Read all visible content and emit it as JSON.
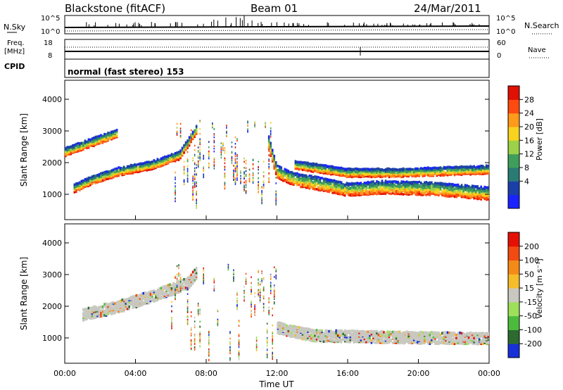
{
  "header": {
    "station": "Blackstone (fitACF)",
    "beam": "Beam 01",
    "date": "24/Mar/2011"
  },
  "noise_panel": {
    "left_label": "N.Sky",
    "right_label": "N.Search",
    "left_ticks": [
      "10^5",
      "10^0"
    ],
    "right_ticks": [
      "10^5",
      "10^0"
    ]
  },
  "freq_panel": {
    "left_label_line1": "Freq.",
    "left_label_line2": "[MHz]",
    "left_ticks": [
      "18",
      "8"
    ],
    "right_label": "Nave",
    "right_ticks": [
      "60",
      "0"
    ]
  },
  "cpid_panel": {
    "label": "CPID",
    "text": "normal (fast stereo) 153"
  },
  "colorbars": {
    "power": {
      "label": "Power [dB]",
      "ticks": [
        "28",
        "24",
        "20",
        "16",
        "12",
        "8",
        "4"
      ],
      "colors": [
        "#1a22ff",
        "#1b3fa8",
        "#2a7b73",
        "#3f9e5a",
        "#9bd149",
        "#f7d21f",
        "#ff9a1a",
        "#ff4a0f",
        "#e01005"
      ]
    },
    "velocity": {
      "label": "Velocity [m s⁻¹]",
      "ticks": [
        "200",
        "100",
        "50",
        "15",
        "-15",
        "-50",
        "-100",
        "-200"
      ],
      "colors": [
        "#1830d8",
        "#2c6a30",
        "#4cba3c",
        "#9ee05a",
        "#c8c8c0",
        "#f5bd2a",
        "#f58a18",
        "#f24a10",
        "#e51005"
      ]
    }
  },
  "chart_data": [
    {
      "type": "heatmap",
      "title": "Power",
      "ylabel": "Slant Range [km]",
      "y_ticks": [
        "1000",
        "2000",
        "3000",
        "4000"
      ],
      "ylim": [
        200,
        4600
      ],
      "xlim_hours": [
        0,
        24
      ],
      "bands": [
        {
          "name": "main",
          "points": [
            [
              0.5,
              1150
            ],
            [
              1.5,
              1400
            ],
            [
              3,
              1680
            ],
            [
              5,
              1900
            ],
            [
              6.5,
              2200
            ],
            [
              7,
              2600
            ],
            [
              7.5,
              3050
            ]
          ]
        },
        {
          "name": "upper",
          "points": [
            [
              0,
              2300
            ],
            [
              1.5,
              2600
            ],
            [
              3,
              2900
            ]
          ]
        },
        {
          "name": "descending",
          "points": [
            [
              11.5,
              2700
            ],
            [
              12,
              1700
            ],
            [
              13,
              1450
            ],
            [
              15,
              1250
            ],
            [
              16,
              1120
            ],
            [
              18,
              1200
            ],
            [
              21,
              1150
            ],
            [
              24,
              1000
            ]
          ]
        },
        {
          "name": "upper-night",
          "points": [
            [
              13,
              1900
            ],
            [
              16,
              1650
            ],
            [
              19,
              1650
            ],
            [
              24,
              1750
            ]
          ]
        }
      ]
    },
    {
      "type": "heatmap",
      "title": "Velocity",
      "ylabel": "Slant Range [km]",
      "y_ticks": [
        "1000",
        "2000",
        "3000",
        "4000"
      ],
      "ylim": [
        200,
        4600
      ],
      "xlim_hours": [
        0,
        24
      ],
      "bands": [
        {
          "name": "day-grey",
          "points": [
            [
              1,
              1700
            ],
            [
              3,
              1950
            ],
            [
              5,
              2300
            ],
            [
              7,
              2700
            ],
            [
              7.5,
              3050
            ]
          ]
        },
        {
          "name": "night-grey",
          "points": [
            [
              12,
              1300
            ],
            [
              14,
              1050
            ],
            [
              18,
              1000
            ],
            [
              24,
              950
            ]
          ]
        }
      ]
    }
  ],
  "x_axis": {
    "ticks": [
      "00:00",
      "04:00",
      "08:00",
      "12:00",
      "16:00",
      "20:00",
      "00:00"
    ],
    "label": "Time UT"
  }
}
